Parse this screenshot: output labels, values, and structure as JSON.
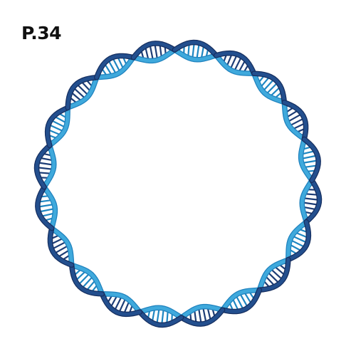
{
  "label": "P.34",
  "diagram": {
    "subject": "circular-dna-double-helix",
    "twists": 10,
    "rungs_per_segment": 8,
    "colors": {
      "strand_light": "#3fa9dc",
      "strand_light_edge": "#1f82be",
      "strand_dark": "#234f8e",
      "strand_dark_edge": "#162f60",
      "rung_light": "#1e86c2",
      "rung_dark": "#1d3d76"
    }
  }
}
